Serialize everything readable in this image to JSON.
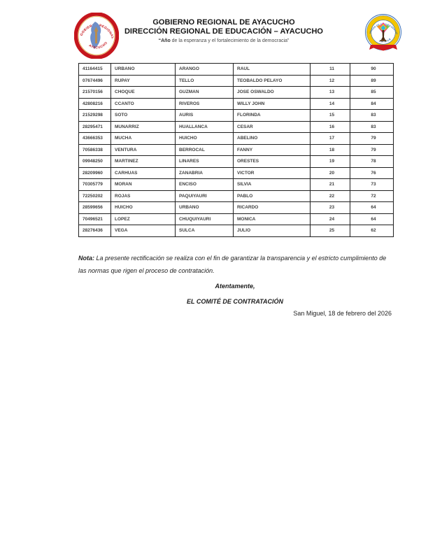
{
  "header": {
    "title_line1": "GOBIERNO REGIONAL DE AYACUCHO",
    "title_line2": "DIRECCIÓN REGIONAL DE EDUCACIÓN – AYACUCHO",
    "motto_bold": "“Año",
    "motto_rest": " de la esperanza y el fortalecimiento de la democracia”",
    "left_logo": {
      "text_top": "GOBIERNO REGIONAL",
      "text_bottom": "AYACUCHO"
    },
    "right_logo": {
      "ring_text_top": "UNIDAD DE GESTIÓN EDUCATIVA LOCAL",
      "ring_text_bottom": "LA MAR"
    }
  },
  "table": {
    "columns": [
      "dni",
      "apellido_paterno",
      "apellido_materno",
      "nombres",
      "orden",
      "puntaje"
    ],
    "rows": [
      [
        "41164415",
        "URBANO",
        "ARANGO",
        "RAUL",
        "11",
        "90"
      ],
      [
        "07674496",
        "RUPAY",
        "TELLO",
        "TEOBALDO PELAYO",
        "12",
        "89"
      ],
      [
        "21570156",
        "CHOQUE",
        "GUZMAN",
        "JOSE OSWALDO",
        "13",
        "85"
      ],
      [
        "42808216",
        "CCANTO",
        "RIVEROS",
        "WILLY JOHN",
        "14",
        "84"
      ],
      [
        "21529298",
        "SOTO",
        "AURIS",
        "FLORINDA",
        "15",
        "83"
      ],
      [
        "28295471",
        "MUNARRIZ",
        "HUALLANCA",
        "CESAR",
        "16",
        "83"
      ],
      [
        "43666353",
        "MUCHA",
        "HUICHO",
        "ABELINO",
        "17",
        "79"
      ],
      [
        "70586338",
        "VENTURA",
        "BERROCAL",
        "FANNY",
        "18",
        "79"
      ],
      [
        "09948250",
        "MARTINEZ",
        "LINARES",
        "ORESTES",
        "19",
        "78"
      ],
      [
        "28209960",
        "CARHUAS",
        "ZANABRIA",
        "VICTOR",
        "20",
        "76"
      ],
      [
        "70305779",
        "MORAN",
        "ENCISO",
        "SILVIA",
        "21",
        "73"
      ],
      [
        "72250202",
        "ROJAS",
        "PAQUIYAURI",
        "PABLO",
        "22",
        "72"
      ],
      [
        "28599656",
        "HUICHO",
        "URBANO",
        "RICARDO",
        "23",
        "64"
      ],
      [
        "70496521",
        "LOPEZ",
        "CHUQUIYAURI",
        "MONICA",
        "24",
        "64"
      ],
      [
        "28276436",
        "VEGA",
        "SULCA",
        "JULIO",
        "25",
        "62"
      ]
    ]
  },
  "note": {
    "label": "Nota:",
    "text": " La presente rectificación se realiza con el fin de garantizar la transparencia y el estricto cumplimiento de las normas que rigen el proceso de contratación."
  },
  "closing": {
    "salutation": "Atentamente,",
    "committee": "EL COMITÉ DE CONTRATACIÓN",
    "dateline": "San Miguel, 18 de febrero del 2026"
  },
  "colors": {
    "logo_red": "#c5161d",
    "logo_blue": "#2b64b0",
    "logo_yellow": "#f4c400"
  }
}
